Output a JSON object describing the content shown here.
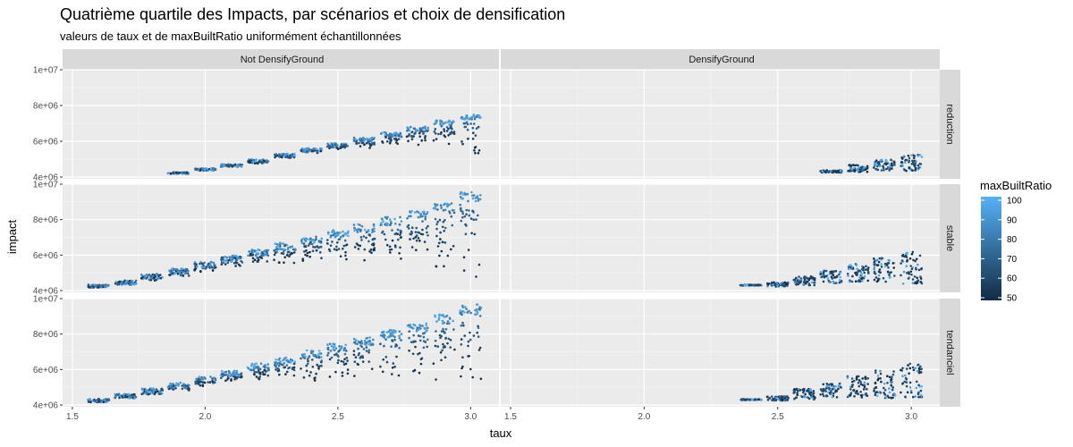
{
  "chart_data": {
    "type": "scatter",
    "title": "Quatrième quartile des Impacts, par scénarios et choix de densification",
    "subtitle": "valeurs de taux et de maxBuiltRatio uniformément échantillonnées",
    "xlabel": "taux",
    "ylabel": "impact",
    "column_facets": [
      "Not DensifyGround",
      "DensifyGround"
    ],
    "row_facets": [
      "reduction",
      "stable",
      "tendanciel"
    ],
    "x_ticks": [
      1.5,
      2.0,
      2.5,
      3.0
    ],
    "x_tick_labels": [
      "1.5",
      "2.0",
      "2.5",
      "3.0"
    ],
    "y_ticks": [
      4000000,
      6000000,
      8000000,
      10000000
    ],
    "y_tick_labels": [
      "4e+06",
      "6e+06",
      "8e+06",
      "1e+07"
    ],
    "xlim": [
      1.48,
      3.1
    ],
    "ylim": [
      3900000,
      10000000
    ],
    "color_scale": {
      "name": "maxBuiltRatio",
      "min": 50,
      "max": 100,
      "low_color": "#132B43",
      "high_color": "#56B1F7",
      "breaks": [
        100,
        90,
        80,
        70,
        60,
        50
      ],
      "break_labels": [
        "100",
        "90",
        "80",
        "70",
        "60",
        "50"
      ]
    },
    "panels": [
      {
        "row": "reduction",
        "col": "Not DensifyGround",
        "clusters": [
          {
            "x": 1.9,
            "center": 4220000,
            "spread": 40000,
            "tail": 0
          },
          {
            "x": 2.0,
            "center": 4420000,
            "spread": 60000,
            "tail": 0
          },
          {
            "x": 2.1,
            "center": 4640000,
            "spread": 70000,
            "tail": 0
          },
          {
            "x": 2.2,
            "center": 4920000,
            "spread": 80000,
            "tail": 100000
          },
          {
            "x": 2.3,
            "center": 5220000,
            "spread": 90000,
            "tail": 120000
          },
          {
            "x": 2.4,
            "center": 5520000,
            "spread": 90000,
            "tail": 150000
          },
          {
            "x": 2.5,
            "center": 5800000,
            "spread": 100000,
            "tail": 200000
          },
          {
            "x": 2.6,
            "center": 6100000,
            "spread": 100000,
            "tail": 350000
          },
          {
            "x": 2.7,
            "center": 6400000,
            "spread": 110000,
            "tail": 550000
          },
          {
            "x": 2.8,
            "center": 6700000,
            "spread": 120000,
            "tail": 750000
          },
          {
            "x": 2.9,
            "center": 7050000,
            "spread": 120000,
            "tail": 1000000
          },
          {
            "x": 3.0,
            "center": 7350000,
            "spread": 130000,
            "tail": 1750000
          }
        ]
      },
      {
        "row": "reduction",
        "col": "DensifyGround",
        "clusters": [
          {
            "x": 2.7,
            "center": 4300000,
            "spread": 60000,
            "tail": 0
          },
          {
            "x": 2.8,
            "center": 4450000,
            "spread": 200000,
            "tail": 0
          },
          {
            "x": 2.9,
            "center": 4600000,
            "spread": 300000,
            "tail": 0
          },
          {
            "x": 3.0,
            "center": 4700000,
            "spread": 450000,
            "tail": 0
          }
        ]
      },
      {
        "row": "stable",
        "col": "Not DensifyGround",
        "clusters": [
          {
            "x": 1.6,
            "center": 4250000,
            "spread": 80000,
            "tail": 0
          },
          {
            "x": 1.7,
            "center": 4450000,
            "spread": 120000,
            "tail": 0
          },
          {
            "x": 1.8,
            "center": 4800000,
            "spread": 150000,
            "tail": 100000
          },
          {
            "x": 1.9,
            "center": 5100000,
            "spread": 160000,
            "tail": 200000
          },
          {
            "x": 2.0,
            "center": 5450000,
            "spread": 170000,
            "tail": 250000
          },
          {
            "x": 2.1,
            "center": 5800000,
            "spread": 180000,
            "tail": 300000
          },
          {
            "x": 2.2,
            "center": 6150000,
            "spread": 190000,
            "tail": 500000
          },
          {
            "x": 2.3,
            "center": 6500000,
            "spread": 200000,
            "tail": 800000
          },
          {
            "x": 2.4,
            "center": 6850000,
            "spread": 210000,
            "tail": 1000000
          },
          {
            "x": 2.5,
            "center": 7200000,
            "spread": 220000,
            "tail": 1300000
          },
          {
            "x": 2.6,
            "center": 7550000,
            "spread": 230000,
            "tail": 1700000
          },
          {
            "x": 2.7,
            "center": 7950000,
            "spread": 240000,
            "tail": 2000000
          },
          {
            "x": 2.8,
            "center": 8300000,
            "spread": 250000,
            "tail": 2400000
          },
          {
            "x": 2.9,
            "center": 8750000,
            "spread": 260000,
            "tail": 2900000
          },
          {
            "x": 3.0,
            "center": 9300000,
            "spread": 280000,
            "tail": 3800000
          }
        ]
      },
      {
        "row": "stable",
        "col": "DensifyGround",
        "clusters": [
          {
            "x": 2.4,
            "center": 4300000,
            "spread": 20000,
            "tail": 0
          },
          {
            "x": 2.5,
            "center": 4320000,
            "spread": 120000,
            "tail": 0
          },
          {
            "x": 2.6,
            "center": 4500000,
            "spread": 250000,
            "tail": 0
          },
          {
            "x": 2.7,
            "center": 4700000,
            "spread": 350000,
            "tail": 0
          },
          {
            "x": 2.8,
            "center": 4900000,
            "spread": 500000,
            "tail": 0
          },
          {
            "x": 2.9,
            "center": 5000000,
            "spread": 700000,
            "tail": 0
          },
          {
            "x": 3.0,
            "center": 5100000,
            "spread": 900000,
            "tail": 0
          }
        ]
      },
      {
        "row": "tendanciel",
        "col": "Not DensifyGround",
        "clusters": [
          {
            "x": 1.6,
            "center": 4250000,
            "spread": 90000,
            "tail": 0
          },
          {
            "x": 1.7,
            "center": 4500000,
            "spread": 120000,
            "tail": 0
          },
          {
            "x": 1.8,
            "center": 4800000,
            "spread": 150000,
            "tail": 100000
          },
          {
            "x": 1.9,
            "center": 5100000,
            "spread": 160000,
            "tail": 200000
          },
          {
            "x": 2.0,
            "center": 5450000,
            "spread": 170000,
            "tail": 300000
          },
          {
            "x": 2.1,
            "center": 5800000,
            "spread": 180000,
            "tail": 350000
          },
          {
            "x": 2.2,
            "center": 6150000,
            "spread": 190000,
            "tail": 600000
          },
          {
            "x": 2.3,
            "center": 6500000,
            "spread": 200000,
            "tail": 900000
          },
          {
            "x": 2.4,
            "center": 6900000,
            "spread": 210000,
            "tail": 1200000
          },
          {
            "x": 2.5,
            "center": 7250000,
            "spread": 220000,
            "tail": 1500000
          },
          {
            "x": 2.6,
            "center": 7600000,
            "spread": 230000,
            "tail": 1800000
          },
          {
            "x": 2.7,
            "center": 8000000,
            "spread": 240000,
            "tail": 2200000
          },
          {
            "x": 2.8,
            "center": 8400000,
            "spread": 250000,
            "tail": 2600000
          },
          {
            "x": 2.9,
            "center": 8850000,
            "spread": 260000,
            "tail": 3100000
          },
          {
            "x": 3.0,
            "center": 9400000,
            "spread": 280000,
            "tail": 3800000
          }
        ]
      },
      {
        "row": "tendanciel",
        "col": "DensifyGround",
        "clusters": [
          {
            "x": 2.4,
            "center": 4300000,
            "spread": 20000,
            "tail": 0
          },
          {
            "x": 2.5,
            "center": 4350000,
            "spread": 120000,
            "tail": 0
          },
          {
            "x": 2.6,
            "center": 4550000,
            "spread": 300000,
            "tail": 0
          },
          {
            "x": 2.7,
            "center": 4750000,
            "spread": 400000,
            "tail": 0
          },
          {
            "x": 2.8,
            "center": 4900000,
            "spread": 600000,
            "tail": 0
          },
          {
            "x": 2.9,
            "center": 5000000,
            "spread": 800000,
            "tail": 0
          },
          {
            "x": 3.0,
            "center": 5200000,
            "spread": 1000000,
            "tail": 0
          }
        ]
      }
    ]
  }
}
